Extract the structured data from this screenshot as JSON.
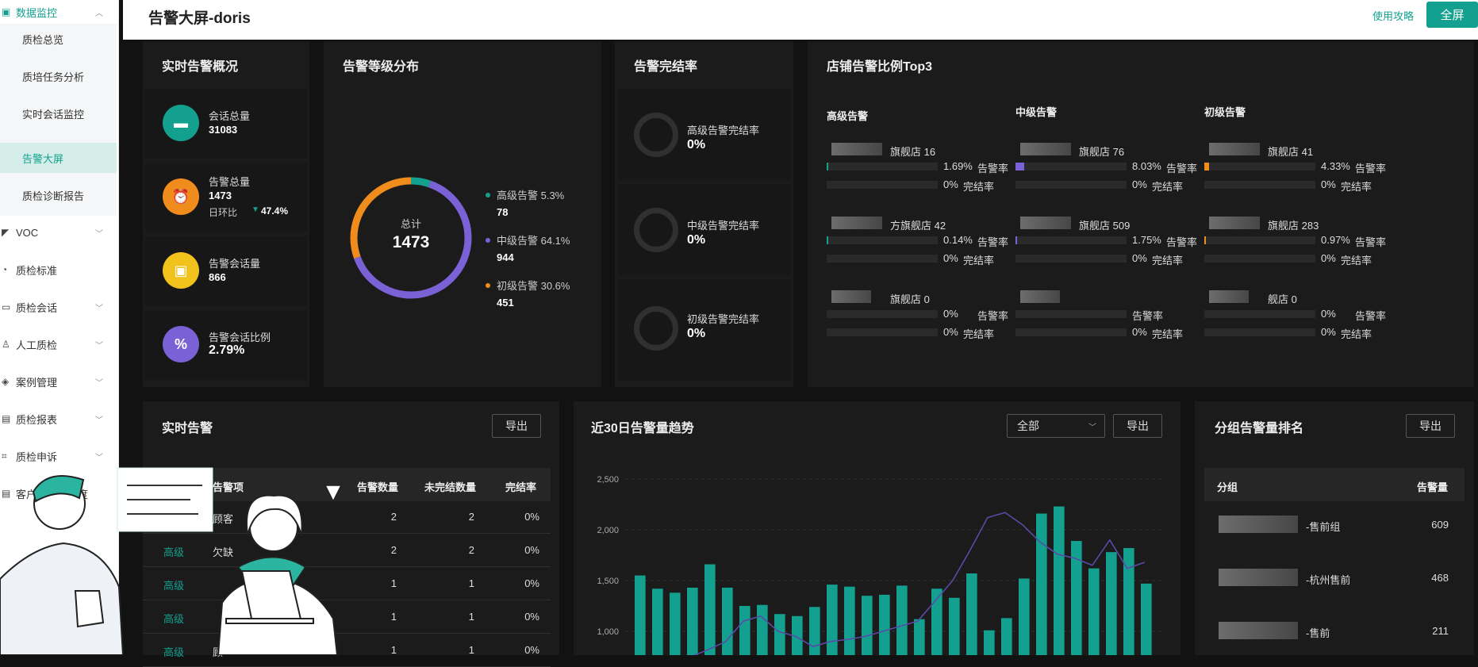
{
  "sidebar": {
    "group": {
      "label": "数据监控"
    },
    "subs": [
      {
        "label": "质检总览"
      },
      {
        "label": "质培任务分析"
      },
      {
        "label": "实时会话监控"
      },
      {
        "label": "告警大屏"
      },
      {
        "label": "质检诊断报告"
      }
    ],
    "items": [
      {
        "label": "VOC"
      },
      {
        "label": "质检标准"
      },
      {
        "label": "质检会话"
      },
      {
        "label": "人工质检"
      },
      {
        "label": "案例管理"
      },
      {
        "label": "质检报表"
      },
      {
        "label": "质检申诉"
      },
      {
        "label": "客户评价满意度"
      }
    ]
  },
  "header": {
    "title": "告警大屏-doris",
    "guide": "使用攻略",
    "fullscreen": "全屏"
  },
  "overview": {
    "title": "实时告警概况",
    "kpis": [
      {
        "label": "会话总量",
        "value": "31083"
      },
      {
        "label": "告警总量",
        "value": "1473",
        "compare_label": "日环比",
        "compare_value": "47.4%"
      },
      {
        "label": "告警会话量",
        "value": "866"
      },
      {
        "label": "告警会话比例",
        "value": "2.79%"
      }
    ]
  },
  "levels": {
    "title": "告警等级分布",
    "total_label": "总计",
    "total": "1473",
    "items": [
      {
        "label": "高级告警 5.3%",
        "value": "78",
        "color": "#14a08f",
        "pct": 5.3
      },
      {
        "label": "中级告警 64.1%",
        "value": "944",
        "color": "#7b61d6",
        "pct": 64.1
      },
      {
        "label": "初级告警 30.6%",
        "value": "451",
        "color": "#f08c1c",
        "pct": 30.6
      }
    ]
  },
  "completion": {
    "title": "告警完结率",
    "items": [
      {
        "label": "高级告警完结率",
        "value": "0%"
      },
      {
        "label": "中级告警完结率",
        "value": "0%"
      },
      {
        "label": "初级告警完结率",
        "value": "0%"
      }
    ]
  },
  "shops": {
    "title": "店铺告警比例Top3",
    "alert_suffix": "告警率",
    "done_suffix": "完结率",
    "columns": [
      {
        "label": "高级告警",
        "color": "#14a08f",
        "rows": [
          {
            "name": "旗舰店 16",
            "rate": "1.69%",
            "done": "0%",
            "fill": 0.017
          },
          {
            "name": "方旗舰店 42",
            "rate": "0.14%",
            "done": "0%",
            "fill": 0.0014
          },
          {
            "name": "旗舰店 0",
            "rate": "0%",
            "done": "0%",
            "fill": 0
          }
        ]
      },
      {
        "label": "中级告警",
        "color": "#7b61d6",
        "rows": [
          {
            "name": "旗舰店 76",
            "rate": "8.03%",
            "done": "0%",
            "fill": 0.08
          },
          {
            "name": "旗舰店 509",
            "rate": "1.75%",
            "done": "0%",
            "fill": 0.0175
          },
          {
            "name": "",
            "rate": "",
            "done": "0%",
            "fill": 0
          }
        ]
      },
      {
        "label": "初级告警",
        "color": "#f08c1c",
        "rows": [
          {
            "name": "旗舰店 41",
            "rate": "4.33%",
            "done": "0%",
            "fill": 0.0433
          },
          {
            "name": "旗舰店 283",
            "rate": "0.97%",
            "done": "0%",
            "fill": 0.0097
          },
          {
            "name": "舰店 0",
            "rate": "0%",
            "done": "0%",
            "fill": 0
          }
        ]
      }
    ]
  },
  "realtime": {
    "title": "实时告警",
    "export": "导出",
    "headers": [
      "告警项",
      "告警数量",
      "未完结数量",
      "完结率"
    ],
    "rows": [
      {
        "level": "",
        "item": "顾客",
        "count": "2",
        "open": "2",
        "rate": "0%"
      },
      {
        "level": "高级",
        "item": "欠缺",
        "count": "2",
        "open": "2",
        "rate": "0%"
      },
      {
        "level": "高级",
        "item": "",
        "count": "1",
        "open": "1",
        "rate": "0%"
      },
      {
        "level": "高级",
        "item": "",
        "count": "1",
        "open": "1",
        "rate": "0%"
      },
      {
        "level": "高级",
        "item": "顾",
        "count": "1",
        "open": "1",
        "rate": "0%"
      }
    ]
  },
  "trend": {
    "title": "近30日告警量趋势",
    "select": "全部",
    "export": "导出"
  },
  "chart_data": {
    "type": "bar",
    "y_ticks": [
      "2,500",
      "2,000",
      "1,500",
      "1,000"
    ],
    "ylim": [
      800,
      2500
    ],
    "values": [
      1550,
      1420,
      1380,
      1430,
      1660,
      1430,
      1250,
      1260,
      1170,
      1150,
      1240,
      1460,
      1440,
      1350,
      1360,
      1450,
      1120,
      1420,
      1330,
      1570,
      1010,
      1130,
      1520,
      2160,
      2230,
      1890,
      1620,
      1780,
      1820,
      1470
    ],
    "line": [
      700,
      700,
      700,
      750,
      820,
      900,
      1100,
      1150,
      1000,
      950,
      850,
      900,
      920,
      950,
      1000,
      1050,
      1100,
      1300,
      1500,
      1800,
      2120,
      2170,
      2050,
      1880,
      1760,
      1720,
      1650,
      1900,
      1620,
      1680
    ],
    "bar_color": "#14a08f",
    "line_color": "#5a4aa8"
  },
  "ranking": {
    "title": "分组告警量排名",
    "export": "导出",
    "headers": [
      "分组",
      "告警量"
    ],
    "rows": [
      {
        "name": "-售前组",
        "value": "609"
      },
      {
        "name": "-杭州售前",
        "value": "468"
      },
      {
        "name": "-售前",
        "value": "211"
      }
    ]
  }
}
